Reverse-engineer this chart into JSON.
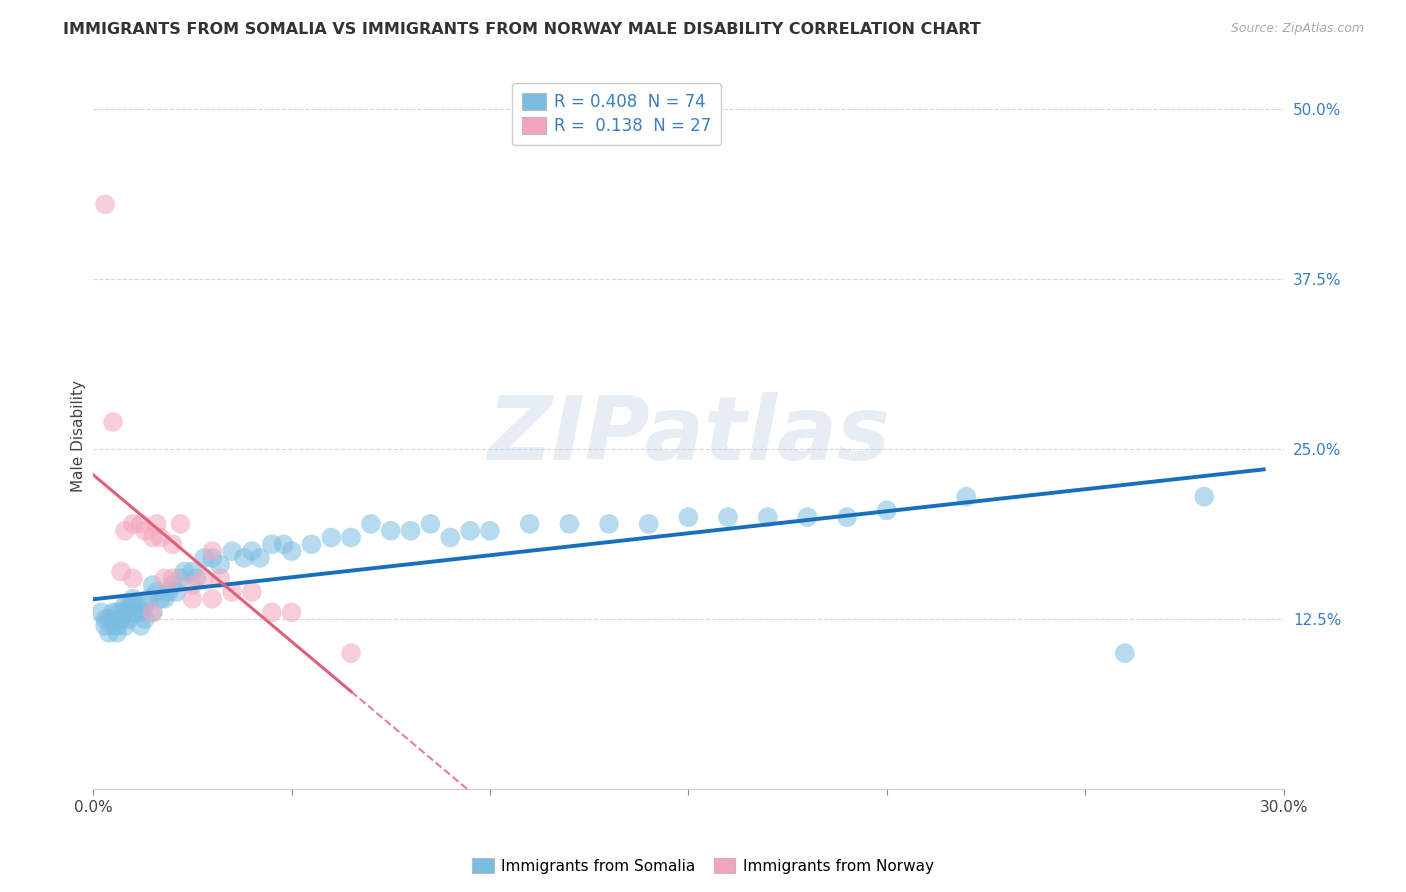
{
  "title": "IMMIGRANTS FROM SOMALIA VS IMMIGRANTS FROM NORWAY MALE DISABILITY CORRELATION CHART",
  "source": "Source: ZipAtlas.com",
  "ylabel": "Male Disability",
  "x_ticks": [
    0.0,
    0.05,
    0.1,
    0.15,
    0.2,
    0.25,
    0.3
  ],
  "x_tick_labels": [
    "0.0%",
    "",
    "",
    "",
    "",
    "",
    "30.0%"
  ],
  "y_ticks": [
    0.0,
    0.125,
    0.25,
    0.375,
    0.5
  ],
  "y_tick_labels": [
    "",
    "12.5%",
    "25.0%",
    "37.5%",
    "50.0%"
  ],
  "xlim": [
    0.0,
    0.3
  ],
  "ylim": [
    0.0,
    0.52
  ],
  "somalia_R": 0.408,
  "somalia_N": 74,
  "norway_R": 0.138,
  "norway_N": 27,
  "somalia_color": "#7bbde0",
  "norway_color": "#f4a4bc",
  "somalia_line_color": "#1a6fba",
  "norway_line_color": "#e0607a",
  "watermark_text": "ZIPatlas",
  "legend_label_somalia": "Immigrants from Somalia",
  "legend_label_norway": "Immigrants from Norway",
  "somalia_x": [
    0.002,
    0.003,
    0.003,
    0.004,
    0.004,
    0.005,
    0.005,
    0.005,
    0.006,
    0.006,
    0.006,
    0.007,
    0.007,
    0.007,
    0.008,
    0.008,
    0.008,
    0.009,
    0.009,
    0.01,
    0.01,
    0.01,
    0.011,
    0.011,
    0.012,
    0.012,
    0.013,
    0.013,
    0.014,
    0.015,
    0.015,
    0.016,
    0.017,
    0.018,
    0.019,
    0.02,
    0.021,
    0.022,
    0.023,
    0.025,
    0.026,
    0.028,
    0.03,
    0.032,
    0.035,
    0.038,
    0.04,
    0.042,
    0.045,
    0.048,
    0.05,
    0.055,
    0.06,
    0.065,
    0.07,
    0.075,
    0.08,
    0.085,
    0.09,
    0.095,
    0.1,
    0.11,
    0.12,
    0.13,
    0.14,
    0.15,
    0.16,
    0.17,
    0.18,
    0.19,
    0.2,
    0.22,
    0.26,
    0.28
  ],
  "somalia_y": [
    0.13,
    0.12,
    0.125,
    0.115,
    0.125,
    0.12,
    0.13,
    0.125,
    0.13,
    0.115,
    0.12,
    0.125,
    0.13,
    0.125,
    0.135,
    0.12,
    0.13,
    0.125,
    0.135,
    0.13,
    0.135,
    0.14,
    0.13,
    0.135,
    0.13,
    0.12,
    0.135,
    0.125,
    0.14,
    0.15,
    0.13,
    0.145,
    0.14,
    0.14,
    0.145,
    0.15,
    0.145,
    0.155,
    0.16,
    0.16,
    0.155,
    0.17,
    0.17,
    0.165,
    0.175,
    0.17,
    0.175,
    0.17,
    0.18,
    0.18,
    0.175,
    0.18,
    0.185,
    0.185,
    0.195,
    0.19,
    0.19,
    0.195,
    0.185,
    0.19,
    0.19,
    0.195,
    0.195,
    0.195,
    0.195,
    0.2,
    0.2,
    0.2,
    0.2,
    0.2,
    0.205,
    0.215,
    0.1,
    0.215
  ],
  "norway_x": [
    0.003,
    0.005,
    0.007,
    0.008,
    0.01,
    0.01,
    0.012,
    0.013,
    0.015,
    0.015,
    0.016,
    0.017,
    0.018,
    0.02,
    0.02,
    0.022,
    0.025,
    0.025,
    0.028,
    0.03,
    0.03,
    0.032,
    0.035,
    0.04,
    0.045,
    0.05,
    0.065
  ],
  "norway_y": [
    0.43,
    0.27,
    0.16,
    0.19,
    0.195,
    0.155,
    0.195,
    0.19,
    0.185,
    0.13,
    0.195,
    0.185,
    0.155,
    0.18,
    0.155,
    0.195,
    0.15,
    0.14,
    0.155,
    0.14,
    0.175,
    0.155,
    0.145,
    0.145,
    0.13,
    0.13,
    0.1
  ]
}
